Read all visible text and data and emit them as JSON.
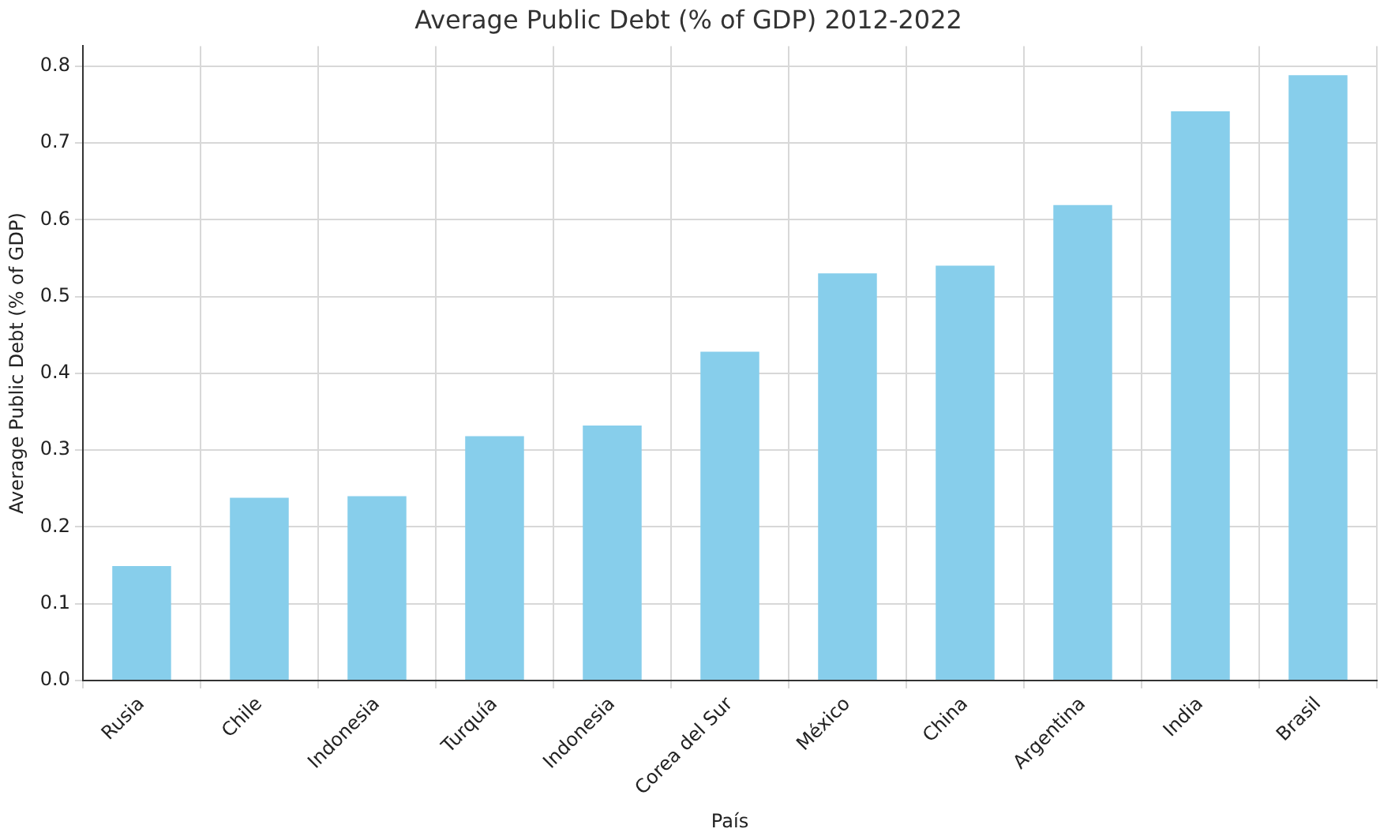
{
  "chart_data": {
    "type": "bar",
    "title": "Average Public Debt (% of GDP) 2012-2022",
    "xlabel": "País",
    "ylabel": "Average Public Debt (% of GDP)",
    "categories": [
      "Rusia",
      "Chile",
      "Indonesia",
      "Turquía",
      "Indonesia",
      "Corea del Sur",
      "México",
      "China",
      "Argentina",
      "India",
      "Brasil"
    ],
    "values": [
      0.149,
      0.238,
      0.24,
      0.318,
      0.332,
      0.428,
      0.53,
      0.54,
      0.619,
      0.741,
      0.788
    ],
    "color": "#87ceeb",
    "ylim": [
      0,
      0.826
    ],
    "yticks": [
      {
        "value": 0,
        "label": "0.0"
      },
      0.1,
      0.2,
      0.3,
      0.4,
      0.5,
      0.6,
      0.7,
      0.8
    ],
    "grid": true
  }
}
